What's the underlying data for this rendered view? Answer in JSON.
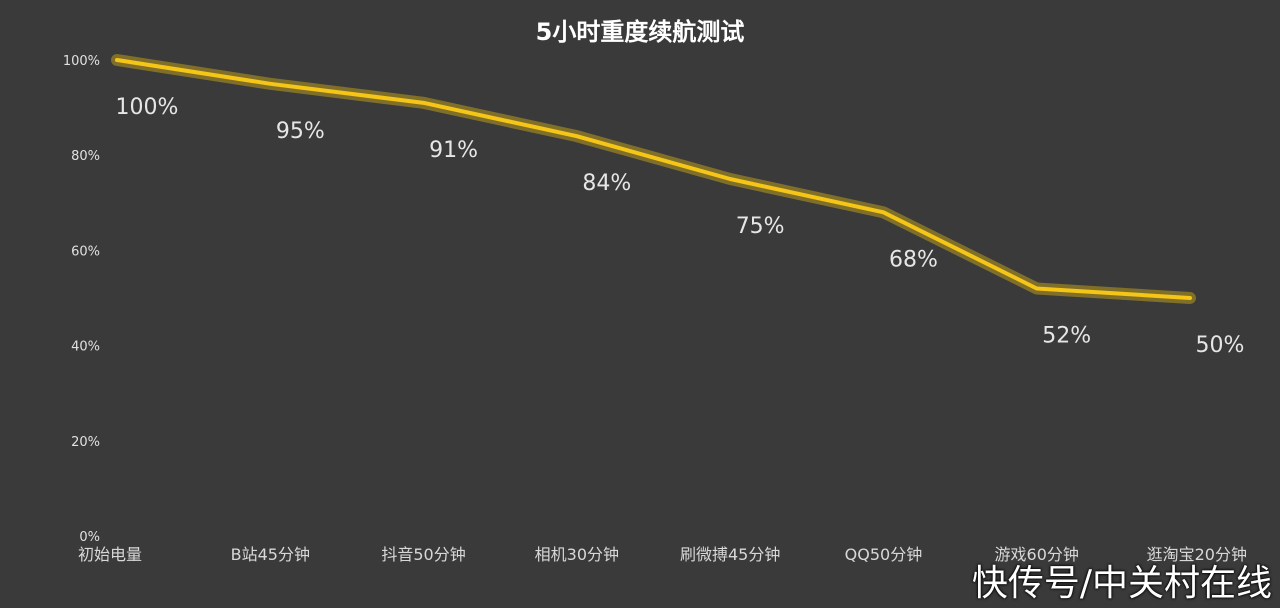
{
  "chart_data": {
    "type": "line",
    "title": "5小时重度续航测试",
    "categories": [
      "初始电量",
      "B站45分钟",
      "抖音50分钟",
      "相机30分钟",
      "刷微搏45分钟",
      "QQ50分钟",
      "游戏60分钟",
      "逛淘宝20分钟"
    ],
    "series": [
      {
        "values": [
          100,
          95,
          91,
          84,
          75,
          68,
          52,
          50
        ],
        "labels": [
          "100%",
          "95%",
          "91%",
          "84%",
          "75%",
          "68%",
          "52%",
          "50%"
        ],
        "color": "#f5c518"
      }
    ],
    "yticks": [
      "0%",
      "20%",
      "40%",
      "60%",
      "80%",
      "100%"
    ],
    "ylim": [
      0,
      100
    ],
    "grid": false,
    "legend": "none"
  },
  "watermark": "快传号/中关村在线"
}
